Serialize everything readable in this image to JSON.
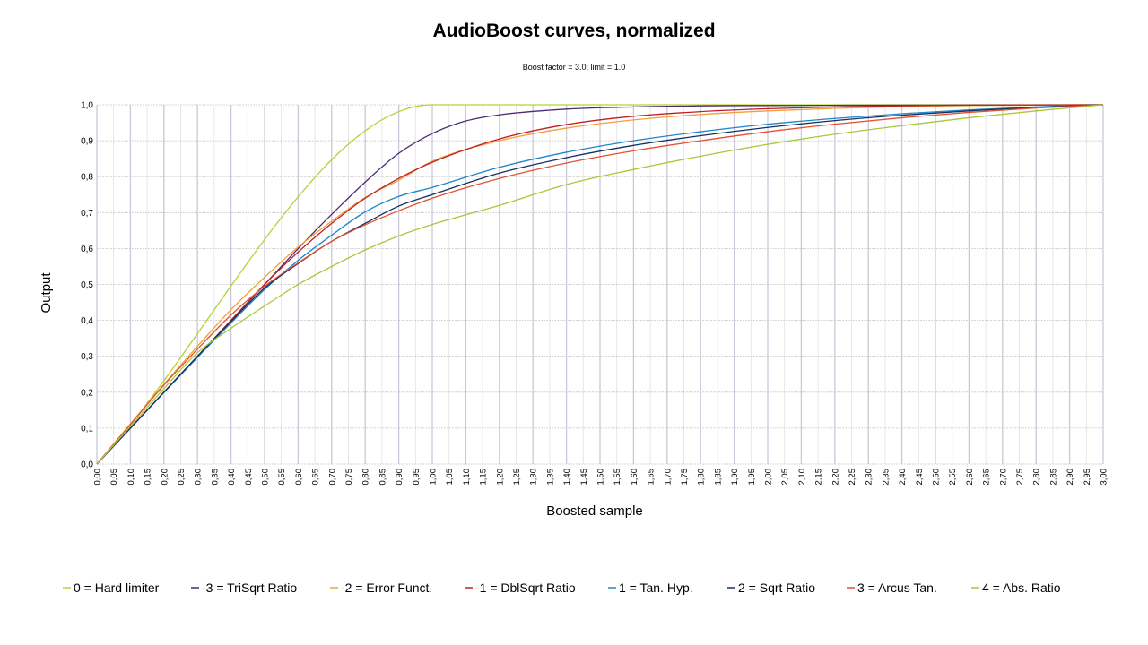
{
  "chart_data": {
    "type": "line",
    "title": "AudioBoost curves, normalized",
    "subtitle": "Boost factor = 3.0; limit = 1.0",
    "xlabel": "Boosted sample",
    "ylabel": "Output",
    "xlim": [
      0,
      3
    ],
    "ylim": [
      0,
      1
    ],
    "x_step": 0.05,
    "y_step": 0.1,
    "decimal_separator": ",",
    "grid": true,
    "legend_position": "bottom",
    "series": [
      {
        "name": "0 = Hard limiter",
        "color": "#b3d334",
        "x": [
          0,
          1,
          3
        ],
        "y": [
          0,
          1,
          1
        ]
      },
      {
        "name": "-3 = TriSqrt Ratio",
        "color": "#4b2b72",
        "x": [
          0,
          0.1,
          0.2,
          0.3,
          0.4,
          0.5,
          0.6,
          0.7,
          0.8,
          0.9,
          1.0,
          1.1,
          1.2,
          1.4,
          1.6,
          1.8,
          2.0,
          2.5,
          3.0
        ],
        "y": [
          0,
          0.1,
          0.2,
          0.3,
          0.4,
          0.5,
          0.6,
          0.695,
          0.785,
          0.865,
          0.92,
          0.955,
          0.972,
          0.988,
          0.994,
          0.997,
          0.998,
          0.999,
          1.0
        ]
      },
      {
        "name": "-2 = Error Funct.",
        "color": "#f2a03a",
        "x": [
          0,
          0.1,
          0.2,
          0.3,
          0.4,
          0.5,
          0.6,
          0.7,
          0.8,
          0.9,
          1.0,
          1.2,
          1.4,
          1.6,
          1.8,
          2.0,
          2.2,
          2.4,
          2.6,
          2.8,
          3.0
        ],
        "y": [
          0,
          0.112,
          0.222,
          0.328,
          0.43,
          0.52,
          0.604,
          0.676,
          0.742,
          0.79,
          0.843,
          0.9,
          0.935,
          0.958,
          0.973,
          0.983,
          0.99,
          0.995,
          0.998,
          0.999,
          1.0
        ]
      },
      {
        "name": "-1 = DblSqrt Ratio",
        "color": "#c01f26",
        "x": [
          0,
          0.1,
          0.2,
          0.3,
          0.4,
          0.5,
          0.6,
          0.7,
          0.8,
          0.9,
          1.0,
          1.2,
          1.4,
          1.6,
          1.8,
          2.0,
          2.2,
          2.4,
          2.6,
          2.8,
          3.0
        ],
        "y": [
          0,
          0.1,
          0.2,
          0.3,
          0.4,
          0.5,
          0.59,
          0.67,
          0.74,
          0.795,
          0.84,
          0.905,
          0.945,
          0.968,
          0.981,
          0.989,
          0.994,
          0.997,
          0.999,
          0.9995,
          1.0
        ]
      },
      {
        "name": "1 = Tan. Hyp.",
        "color": "#1f86c7",
        "x": [
          0,
          0.1,
          0.2,
          0.3,
          0.4,
          0.5,
          0.6,
          0.7,
          0.8,
          0.9,
          1.0,
          1.2,
          1.4,
          1.6,
          1.8,
          2.0,
          2.2,
          2.4,
          2.6,
          2.8,
          3.0
        ],
        "y": [
          0,
          0.1,
          0.199,
          0.297,
          0.393,
          0.486,
          0.567,
          0.637,
          0.702,
          0.745,
          0.77,
          0.826,
          0.868,
          0.9,
          0.925,
          0.946,
          0.962,
          0.975,
          0.986,
          0.994,
          1.0
        ]
      },
      {
        "name": "2 = Sqrt Ratio",
        "color": "#17305e",
        "x": [
          0,
          0.1,
          0.2,
          0.3,
          0.4,
          0.5,
          0.6,
          0.7,
          0.8,
          0.9,
          1.0,
          1.2,
          1.4,
          1.6,
          1.8,
          2.0,
          2.2,
          2.4,
          2.6,
          2.8,
          3.0
        ],
        "y": [
          0,
          0.1,
          0.2,
          0.3,
          0.397,
          0.49,
          0.558,
          0.62,
          0.67,
          0.718,
          0.75,
          0.81,
          0.853,
          0.887,
          0.914,
          0.937,
          0.956,
          0.971,
          0.983,
          0.993,
          1.0
        ]
      },
      {
        "name": "3 = Arcus Tan.",
        "color": "#e4512f",
        "x": [
          0,
          0.1,
          0.2,
          0.3,
          0.4,
          0.5,
          0.6,
          0.7,
          0.8,
          0.9,
          1.0,
          1.2,
          1.4,
          1.6,
          1.8,
          2.0,
          2.2,
          2.4,
          2.6,
          2.8,
          3.0
        ],
        "y": [
          0,
          0.11,
          0.22,
          0.32,
          0.415,
          0.495,
          0.56,
          0.62,
          0.666,
          0.705,
          0.74,
          0.795,
          0.838,
          0.872,
          0.9,
          0.925,
          0.946,
          0.964,
          0.979,
          0.991,
          1.0
        ]
      },
      {
        "name": "4 = Abs. Ratio",
        "color": "#a8c839",
        "x": [
          0,
          0.1,
          0.2,
          0.3,
          0.4,
          0.5,
          0.6,
          0.7,
          0.8,
          0.9,
          1.0,
          1.2,
          1.4,
          1.6,
          1.8,
          2.0,
          2.2,
          2.4,
          2.6,
          2.8,
          3.0
        ],
        "y": [
          0,
          0.105,
          0.21,
          0.31,
          0.378,
          0.44,
          0.5,
          0.55,
          0.596,
          0.635,
          0.667,
          0.72,
          0.778,
          0.82,
          0.857,
          0.89,
          0.918,
          0.942,
          0.964,
          0.983,
          1.0
        ]
      }
    ]
  }
}
